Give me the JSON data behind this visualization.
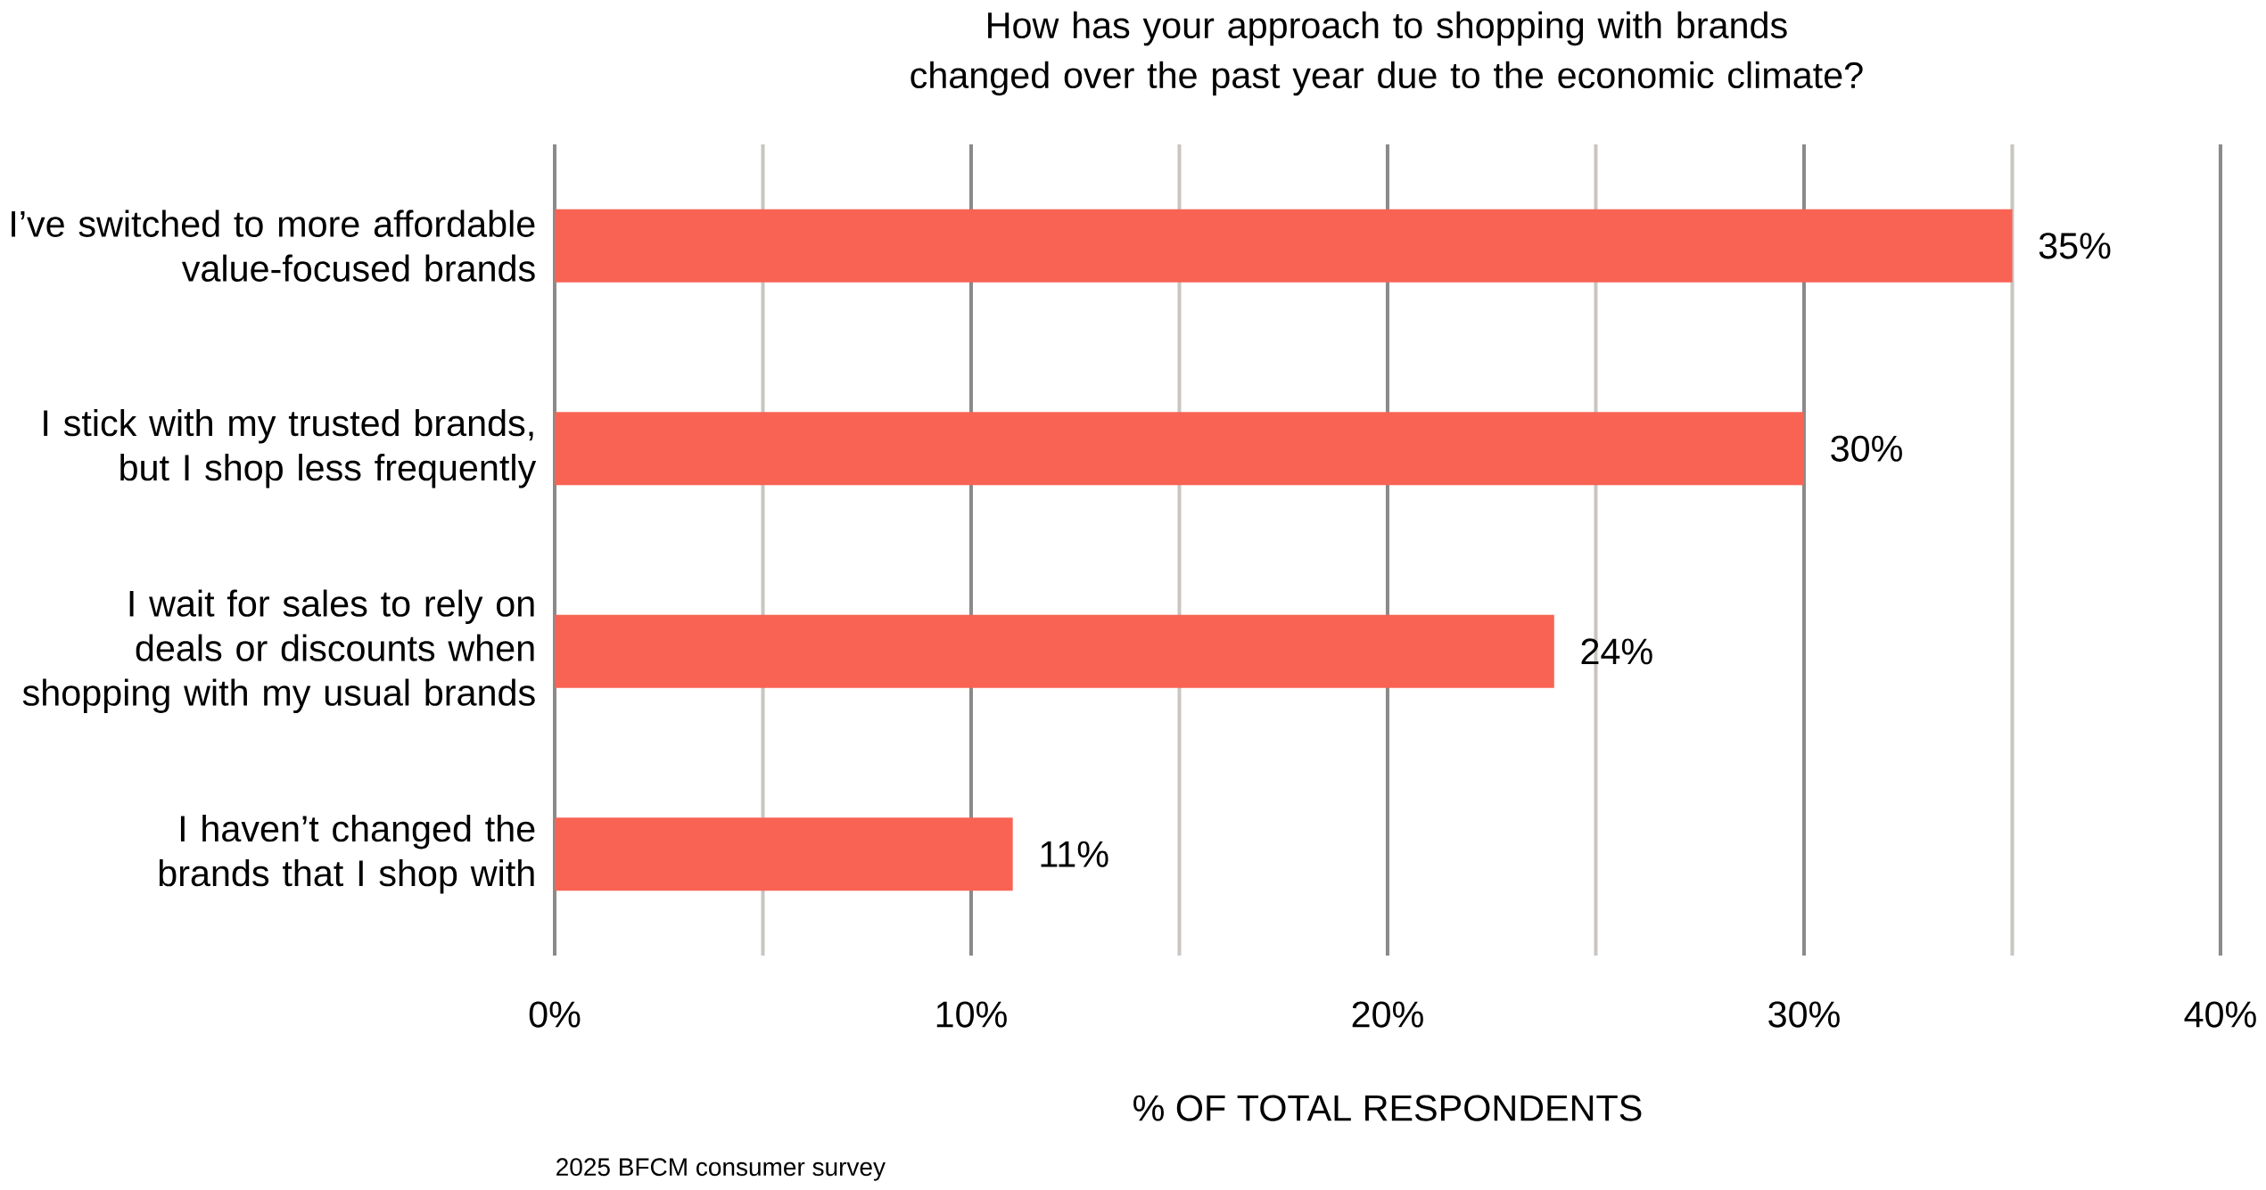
{
  "chart_data": {
    "type": "bar",
    "orientation": "horizontal",
    "title": "How has your approach to shopping with brands changed over the past year due to the economic climate?",
    "xlabel": "% OF TOTAL RESPONDENTS",
    "categories": [
      "I’ve switched to more affordable value-focused brands",
      "I stick with my trusted brands, but I shop less frequently",
      "I wait for sales to rely on deals or discounts when shopping with my usual brands",
      "I haven’t changed the brands that I shop with"
    ],
    "values": [
      35,
      30,
      24,
      11
    ],
    "value_labels": [
      "35%",
      "30%",
      "24%",
      "11%"
    ],
    "color": "#f96354",
    "xlim": [
      0,
      40
    ],
    "xticks": [
      {
        "value": 0,
        "label": "0%"
      },
      {
        "value": 5,
        "label": null
      },
      {
        "value": 10,
        "label": "10%"
      },
      {
        "value": 15,
        "label": null
      },
      {
        "value": 20,
        "label": "20%"
      },
      {
        "value": 25,
        "label": null
      },
      {
        "value": 30,
        "label": "30%"
      },
      {
        "value": 35,
        "label": null
      },
      {
        "value": 40,
        "label": "40%"
      }
    ],
    "grid": "x",
    "annotations": [
      "2025 BFCM consumer survey"
    ]
  }
}
